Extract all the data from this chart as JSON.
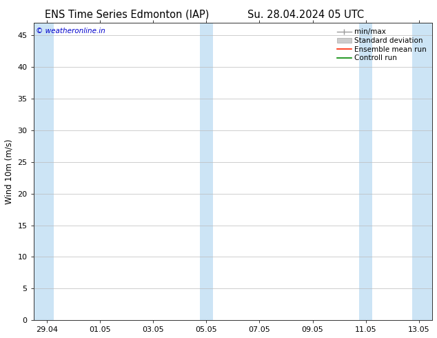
{
  "title_left": "ENS Time Series Edmonton (IAP)",
  "title_right": "Su. 28.04.2024 05 UTC",
  "ylabel": "Wind 10m (m/s)",
  "watermark": "© weatheronline.in",
  "watermark_color": "#0000cc",
  "ylim": [
    0,
    47
  ],
  "yticks": [
    0,
    5,
    10,
    15,
    20,
    25,
    30,
    35,
    40,
    45
  ],
  "x_tick_labels": [
    "29.04",
    "01.05",
    "03.05",
    "05.05",
    "07.05",
    "09.05",
    "11.05",
    "13.05"
  ],
  "x_tick_positions": [
    0,
    2,
    4,
    6,
    8,
    10,
    12,
    14
  ],
  "x_min": -0.5,
  "x_max": 14.5,
  "shaded_bands": [
    [
      -0.5,
      0.25
    ],
    [
      5.75,
      6.25
    ],
    [
      11.75,
      12.25
    ],
    [
      13.75,
      14.5
    ]
  ],
  "shaded_color": "#cce4f5",
  "legend_labels": [
    "min/max",
    "Standard deviation",
    "Ensemble mean run",
    "Controll run"
  ],
  "legend_colors": [
    "#999999",
    "#cccccc",
    "#ff2200",
    "#008800"
  ],
  "background_color": "#ffffff",
  "grid_color": "#bbbbbb",
  "spine_color": "#333333",
  "title_fontsize": 10.5,
  "tick_fontsize": 8,
  "legend_fontsize": 7.5,
  "ylabel_fontsize": 8.5
}
